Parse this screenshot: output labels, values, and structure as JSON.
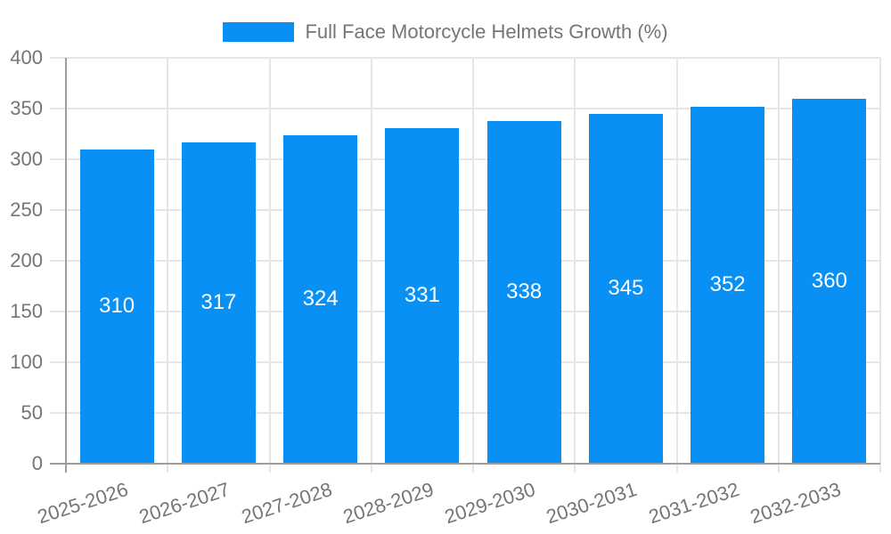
{
  "chart_data": {
    "type": "bar",
    "title": "",
    "legend_label": "Full Face Motorcycle Helmets Growth (%)",
    "legend_position": "top-center",
    "categories": [
      "2025-2026",
      "2026-2027",
      "2027-2028",
      "2028-2029",
      "2029-2030",
      "2030-2031",
      "2031-2032",
      "2032-2033"
    ],
    "values": [
      310,
      317,
      324,
      331,
      338,
      345,
      352,
      360
    ],
    "xlabel": "",
    "ylabel": "",
    "ylim": [
      0,
      400
    ],
    "ytick_step": 50,
    "yticks": [
      0,
      50,
      100,
      150,
      200,
      250,
      300,
      350,
      400
    ],
    "grid": true,
    "value_labels_shown": true
  },
  "colors": {
    "bar": "#0990f5",
    "grid": "#e6e6e6",
    "axis": "#9e9e9e",
    "tick_text": "#757575",
    "bar_label": "#ffffff",
    "background": "#ffffff"
  }
}
